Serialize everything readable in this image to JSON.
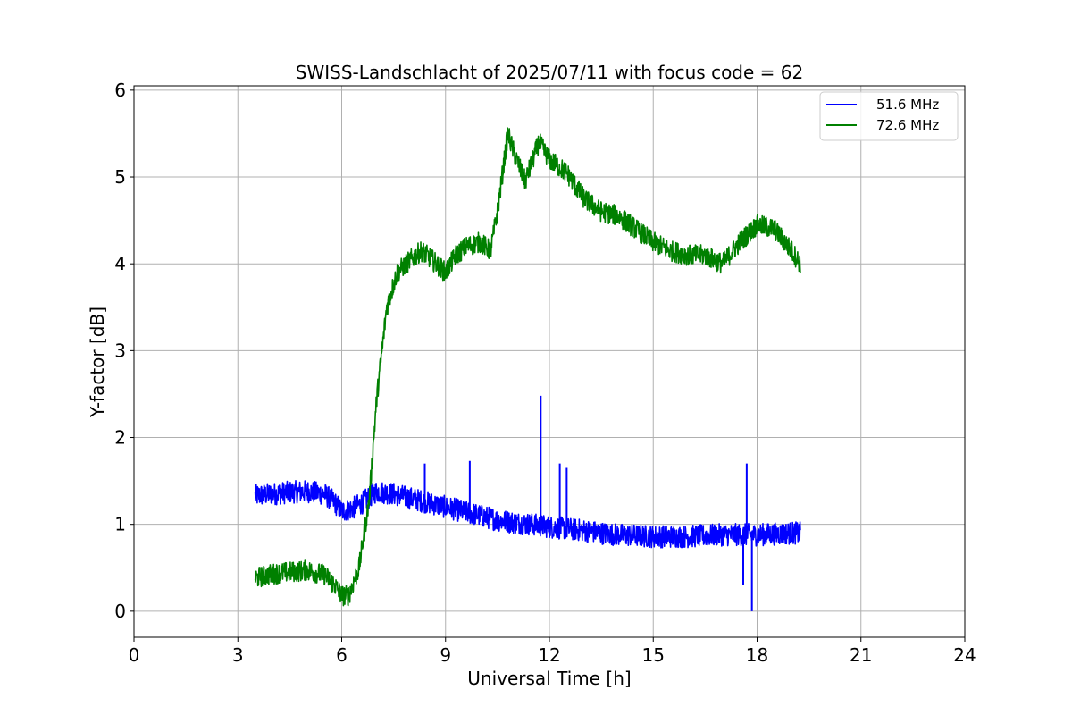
{
  "chart_data": {
    "type": "line",
    "title": "SWISS-Landschlacht of 2025/07/11 with focus code = 62",
    "xlabel": "Universal Time [h]",
    "ylabel": "Y-factor [dB]",
    "xlim": [
      0,
      24
    ],
    "ylim": [
      -0.3,
      6.05
    ],
    "xticks": [
      0,
      3,
      6,
      9,
      12,
      15,
      18,
      21,
      24
    ],
    "yticks": [
      0,
      1,
      2,
      3,
      4,
      5,
      6
    ],
    "grid": true,
    "legend_position": "top-right",
    "series": [
      {
        "name": "51.6 MHz",
        "color": "#0000ff",
        "noise": 0.13,
        "x": [
          3.5,
          4.0,
          4.5,
          5.0,
          5.5,
          5.8,
          6.0,
          6.3,
          6.6,
          7.0,
          7.5,
          8.0,
          8.5,
          9.0,
          9.5,
          10.0,
          10.5,
          11.0,
          11.5,
          12.0,
          12.5,
          13.0,
          13.5,
          14.0,
          14.5,
          15.0,
          15.5,
          16.0,
          16.5,
          17.0,
          17.5,
          18.0,
          18.5,
          19.0,
          19.25
        ],
        "y": [
          1.33,
          1.35,
          1.37,
          1.38,
          1.35,
          1.25,
          1.15,
          1.18,
          1.25,
          1.38,
          1.35,
          1.3,
          1.25,
          1.2,
          1.15,
          1.1,
          1.05,
          1.02,
          1.0,
          0.97,
          0.95,
          0.93,
          0.9,
          0.88,
          0.87,
          0.86,
          0.86,
          0.86,
          0.87,
          0.88,
          0.88,
          0.88,
          0.89,
          0.9,
          0.9
        ],
        "spikes": [
          [
            8.4,
            1.7
          ],
          [
            9.7,
            1.73
          ],
          [
            11.75,
            2.48
          ],
          [
            12.3,
            1.7
          ],
          [
            12.5,
            1.65
          ],
          [
            17.7,
            1.7
          ],
          [
            17.85,
            0.0
          ],
          [
            17.6,
            0.3
          ]
        ]
      },
      {
        "name": "72.6 MHz",
        "color": "#008000",
        "noise": 0.12,
        "x": [
          3.5,
          4.0,
          4.5,
          5.0,
          5.5,
          5.8,
          6.0,
          6.2,
          6.5,
          6.8,
          7.0,
          7.3,
          7.6,
          8.0,
          8.3,
          8.6,
          9.0,
          9.3,
          9.6,
          10.0,
          10.3,
          10.5,
          10.8,
          11.0,
          11.3,
          11.7,
          12.0,
          12.5,
          13.0,
          13.5,
          14.0,
          14.5,
          15.0,
          15.5,
          16.0,
          16.5,
          17.0,
          17.5,
          18.0,
          18.5,
          19.0,
          19.25
        ],
        "y": [
          0.38,
          0.43,
          0.45,
          0.47,
          0.42,
          0.3,
          0.18,
          0.18,
          0.5,
          1.3,
          2.4,
          3.5,
          3.9,
          4.05,
          4.15,
          4.05,
          3.9,
          4.1,
          4.2,
          4.25,
          4.15,
          4.6,
          5.5,
          5.25,
          4.95,
          5.4,
          5.2,
          5.05,
          4.75,
          4.6,
          4.55,
          4.4,
          4.25,
          4.15,
          4.1,
          4.1,
          4.0,
          4.25,
          4.45,
          4.4,
          4.15,
          4.0
        ]
      }
    ]
  }
}
